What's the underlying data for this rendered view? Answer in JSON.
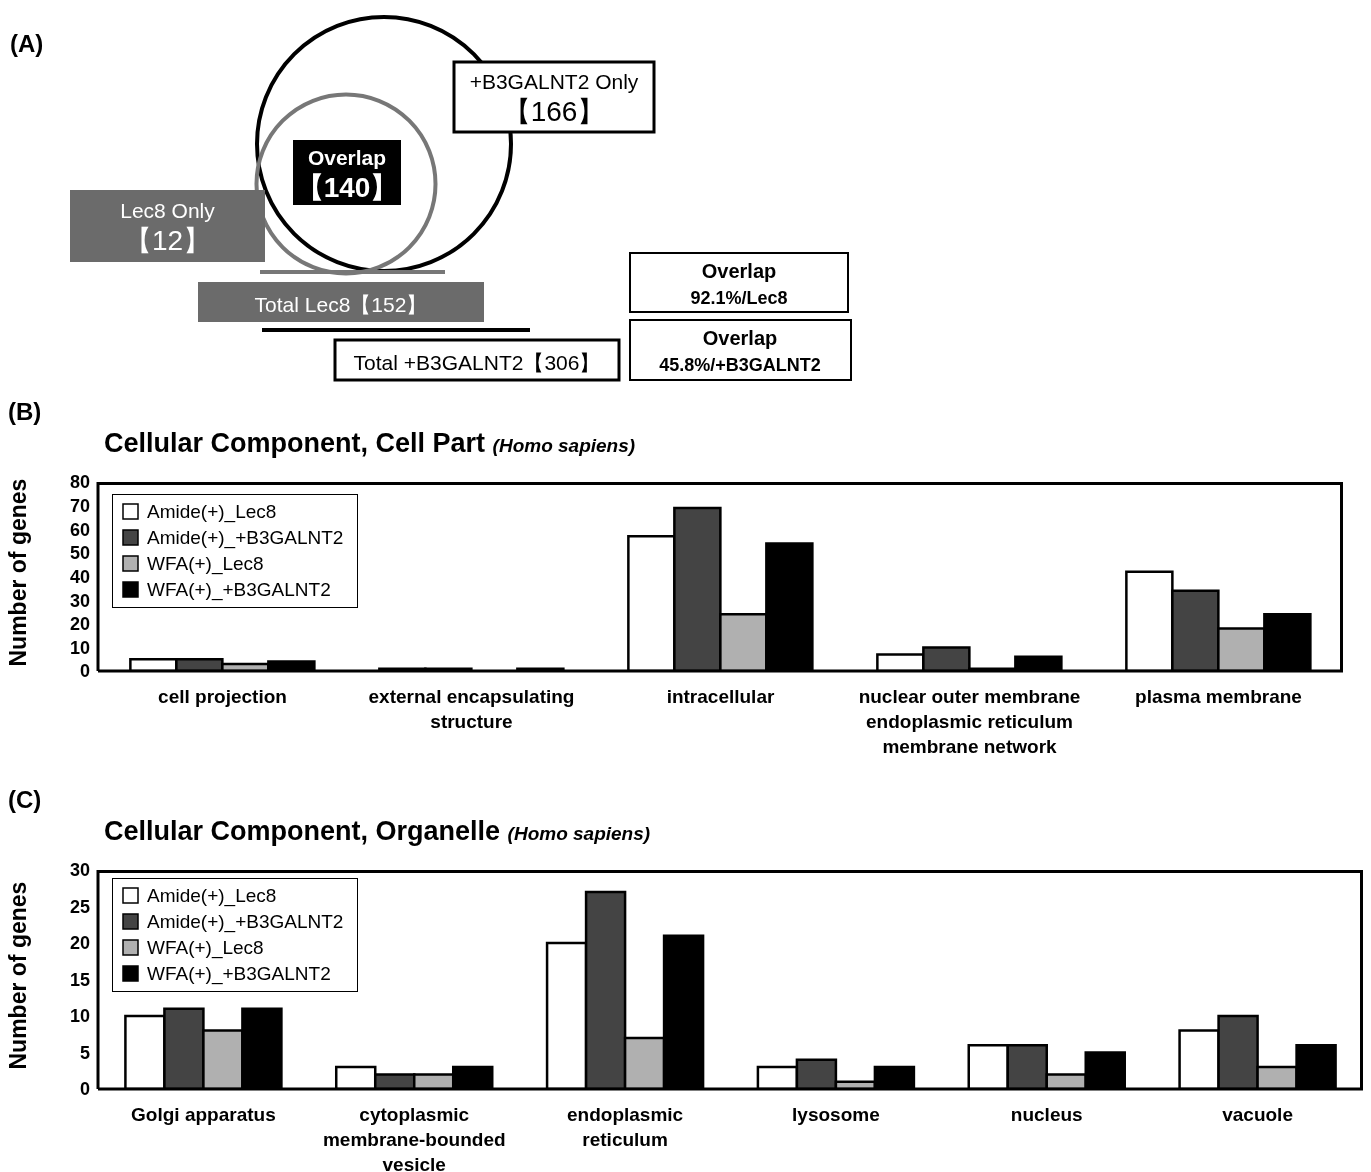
{
  "chart_data": [
    {
      "type": "other",
      "categories": [
        "+B3GALNT2 Only",
        "Overlap",
        "Lec8 Only"
      ],
      "values": [
        166,
        140,
        12
      ],
      "value_labels": [
        "【166】",
        "【140】",
        "【12】"
      ],
      "colors": [
        "#ffffff",
        "#000000",
        "#6b6b6b"
      ],
      "annotations": [
        "(A)",
        "Total Lec8【152】",
        "Total +B3GALNT2【306】",
        "Overlap 92.1%/Lec8",
        "Overlap 45.8%/+B3GALNT2"
      ]
    },
    {
      "type": "bar",
      "title": "Cellular Component, Cell Part",
      "subtitle": "(Homo sapiens)",
      "ylabel": "Number of genes",
      "annotations": [
        "(B)"
      ],
      "categories": [
        "cell projection",
        "external encapsulating structure",
        "intracellular",
        "nuclear outer membrane endoplasmic reticulum membrane network",
        "plasma membrane"
      ],
      "series": [
        {
          "name": "Amide(+)_Lec8",
          "color": "#ffffff",
          "values": [
            5,
            1,
            57,
            7,
            42
          ]
        },
        {
          "name": "Amide(+)_+B3GALNT2",
          "color": "#444444",
          "values": [
            5,
            1,
            69,
            10,
            34
          ]
        },
        {
          "name": "WFA(+)_Lec8",
          "color": "#b0b0b0",
          "values": [
            3,
            0,
            24,
            1,
            18
          ]
        },
        {
          "name": "WFA(+)_+B3GALNT2",
          "color": "#000000",
          "values": [
            4,
            1,
            54,
            6,
            24
          ]
        }
      ],
      "ylim": [
        0,
        80
      ],
      "yticks": [
        0,
        10,
        20,
        30,
        40,
        50,
        60,
        70,
        80
      ],
      "grid": false,
      "legend": "top left"
    },
    {
      "type": "bar",
      "title": "Cellular Component, Organelle",
      "subtitle": "(Homo sapiens)",
      "ylabel": "Number of genes",
      "annotations": [
        "(C)"
      ],
      "categories": [
        "Golgi apparatus",
        "cytoplasmic membrane-bounded vesicle",
        "endoplasmic reticulum",
        "lysosome",
        "nucleus",
        "vacuole"
      ],
      "series": [
        {
          "name": "Amide(+)_Lec8",
          "color": "#ffffff",
          "values": [
            10,
            3,
            20,
            3,
            6,
            8
          ]
        },
        {
          "name": "Amide(+)_+B3GALNT2",
          "color": "#444444",
          "values": [
            11,
            2,
            27,
            4,
            6,
            10
          ]
        },
        {
          "name": "WFA(+)_Lec8",
          "color": "#b0b0b0",
          "values": [
            8,
            2,
            7,
            1,
            2,
            3
          ]
        },
        {
          "name": "WFA(+)_+B3GALNT2",
          "color": "#000000",
          "values": [
            11,
            3,
            21,
            3,
            5,
            6
          ]
        }
      ],
      "ylim": [
        0,
        30
      ],
      "yticks": [
        0,
        5,
        10,
        15,
        20,
        25,
        30
      ],
      "grid": false,
      "legend": "top left"
    }
  ]
}
